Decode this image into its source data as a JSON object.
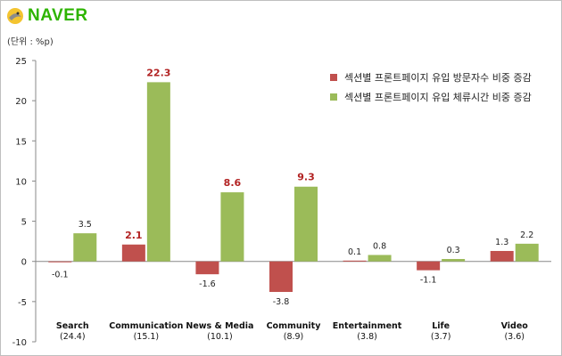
{
  "brand": {
    "name": "NAVER"
  },
  "unit_label": "(단위 : %p)",
  "chart_data": {
    "type": "bar",
    "ylim": [
      -10,
      25
    ],
    "yticks": [
      25,
      20,
      15,
      10,
      5,
      0,
      -5,
      -10
    ],
    "categories": [
      "Search",
      "Communication",
      "News & Media",
      "Community",
      "Entertainment",
      "Life",
      "Video"
    ],
    "category_sub": [
      "(24.4)",
      "(15.1)",
      "(10.1)",
      "(8.9)",
      "(3.8)",
      "(3.7)",
      "(3.6)"
    ],
    "series": [
      {
        "name": "섹션별 프론트페이지 유입 방문자수 비중 증감",
        "color": "#c0504d",
        "values": [
          -0.1,
          2.1,
          -1.6,
          -3.8,
          0.1,
          -1.1,
          1.3
        ]
      },
      {
        "name": "섹션별 프론트페이지 유입 체류시간 비중 증감",
        "color": "#9bbb59",
        "values": [
          3.5,
          22.3,
          8.6,
          9.3,
          0.8,
          0.3,
          2.2
        ]
      }
    ],
    "highlight_labels": [
      {
        "series": 0,
        "index": 1
      },
      {
        "series": 1,
        "index": 1
      },
      {
        "series": 1,
        "index": 2
      },
      {
        "series": 1,
        "index": 3
      }
    ],
    "legend_position": "top-right",
    "grid": false
  }
}
